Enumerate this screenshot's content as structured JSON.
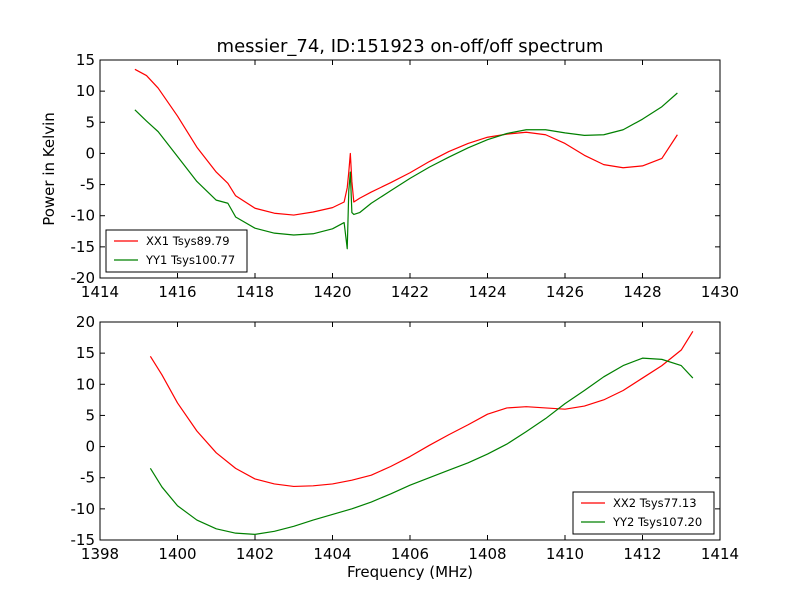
{
  "figure": {
    "title": "messier_74, ID:151923 on-off/off spectrum",
    "ylabel": "Power in Kelvin",
    "xlabel": "Frequency (MHz)"
  },
  "chart_data": [
    {
      "type": "line",
      "xlim": [
        1414,
        1430
      ],
      "ylim": [
        -20,
        15
      ],
      "xticks": [
        1414,
        1416,
        1418,
        1420,
        1422,
        1424,
        1426,
        1428,
        1430
      ],
      "yticks": [
        -20,
        -15,
        -10,
        -5,
        0,
        5,
        10,
        15
      ],
      "legend_position": "lower-left",
      "grid": false,
      "series": [
        {
          "name": "XX1 Tsys89.79",
          "color": "#ff0000",
          "x": [
            1414.9,
            1415.2,
            1415.5,
            1416.0,
            1416.5,
            1417.0,
            1417.3,
            1417.5,
            1418.0,
            1418.5,
            1419.0,
            1419.5,
            1420.0,
            1420.3,
            1420.38,
            1420.42,
            1420.46,
            1420.5,
            1420.55,
            1420.7,
            1421.0,
            1421.5,
            1422.0,
            1422.5,
            1423.0,
            1423.5,
            1424.0,
            1424.5,
            1425.0,
            1425.5,
            1426.0,
            1426.5,
            1427.0,
            1427.5,
            1428.0,
            1428.5,
            1428.9
          ],
          "y": [
            13.5,
            12.5,
            10.5,
            6.0,
            1.0,
            -3.0,
            -4.8,
            -6.8,
            -8.8,
            -9.6,
            -9.9,
            -9.4,
            -8.7,
            -7.8,
            -5.5,
            -3.0,
            0.0,
            -4.5,
            -7.8,
            -7.2,
            -6.2,
            -4.7,
            -3.1,
            -1.3,
            0.3,
            1.6,
            2.6,
            3.1,
            3.4,
            3.0,
            1.6,
            -0.3,
            -1.8,
            -2.3,
            -2.0,
            -0.8,
            3.0
          ]
        },
        {
          "name": "YY1 Tsys100.77",
          "color": "#008000",
          "x": [
            1414.9,
            1415.2,
            1415.5,
            1416.0,
            1416.5,
            1417.0,
            1417.3,
            1417.5,
            1418.0,
            1418.5,
            1419.0,
            1419.5,
            1420.0,
            1420.3,
            1420.38,
            1420.42,
            1420.46,
            1420.5,
            1420.55,
            1420.7,
            1421.0,
            1421.5,
            1422.0,
            1422.5,
            1423.0,
            1423.5,
            1424.0,
            1424.5,
            1425.0,
            1425.5,
            1426.0,
            1426.5,
            1427.0,
            1427.5,
            1428.0,
            1428.5,
            1428.9
          ],
          "y": [
            7.0,
            5.2,
            3.5,
            -0.5,
            -4.5,
            -7.5,
            -8.0,
            -10.2,
            -12.0,
            -12.8,
            -13.1,
            -12.9,
            -12.1,
            -11.1,
            -15.3,
            -6.0,
            -3.0,
            -9.5,
            -9.8,
            -9.5,
            -8.0,
            -6.0,
            -4.0,
            -2.2,
            -0.6,
            0.9,
            2.2,
            3.2,
            3.8,
            3.8,
            3.3,
            2.9,
            3.0,
            3.8,
            5.5,
            7.5,
            9.7
          ]
        }
      ]
    },
    {
      "type": "line",
      "xlim": [
        1398,
        1414
      ],
      "ylim": [
        -15,
        20
      ],
      "xticks": [
        1398,
        1400,
        1402,
        1404,
        1406,
        1408,
        1410,
        1412,
        1414
      ],
      "yticks": [
        -15,
        -10,
        -5,
        0,
        5,
        10,
        15,
        20
      ],
      "legend_position": "lower-right",
      "grid": false,
      "series": [
        {
          "name": "XX2 Tsys77.13",
          "color": "#ff0000",
          "x": [
            1399.3,
            1399.6,
            1400.0,
            1400.5,
            1401.0,
            1401.5,
            1402.0,
            1402.5,
            1403.0,
            1403.5,
            1404.0,
            1404.5,
            1405.0,
            1405.5,
            1406.0,
            1406.5,
            1407.0,
            1407.5,
            1408.0,
            1408.5,
            1409.0,
            1409.5,
            1410.0,
            1410.5,
            1411.0,
            1411.5,
            1412.0,
            1412.5,
            1413.0,
            1413.3
          ],
          "y": [
            14.5,
            11.5,
            7.0,
            2.5,
            -1.0,
            -3.5,
            -5.2,
            -6.0,
            -6.4,
            -6.3,
            -6.0,
            -5.4,
            -4.6,
            -3.2,
            -1.6,
            0.2,
            1.9,
            3.5,
            5.2,
            6.2,
            6.4,
            6.2,
            6.0,
            6.5,
            7.5,
            9.0,
            11.0,
            13.0,
            15.5,
            18.5
          ]
        },
        {
          "name": "YY2 Tsys107.20",
          "color": "#008000",
          "x": [
            1399.3,
            1399.6,
            1400.0,
            1400.5,
            1401.0,
            1401.5,
            1402.0,
            1402.5,
            1403.0,
            1403.5,
            1404.0,
            1404.5,
            1405.0,
            1405.5,
            1406.0,
            1406.5,
            1407.0,
            1407.5,
            1408.0,
            1408.5,
            1409.0,
            1409.5,
            1410.0,
            1410.5,
            1411.0,
            1411.5,
            1412.0,
            1412.5,
            1413.0,
            1413.3
          ],
          "y": [
            -3.5,
            -6.5,
            -9.5,
            -11.8,
            -13.2,
            -13.9,
            -14.1,
            -13.6,
            -12.8,
            -11.8,
            -10.9,
            -10.0,
            -8.9,
            -7.6,
            -6.2,
            -5.0,
            -3.8,
            -2.6,
            -1.2,
            0.4,
            2.4,
            4.5,
            6.9,
            9.0,
            11.2,
            13.0,
            14.2,
            14.0,
            13.0,
            11.0
          ]
        }
      ]
    }
  ]
}
